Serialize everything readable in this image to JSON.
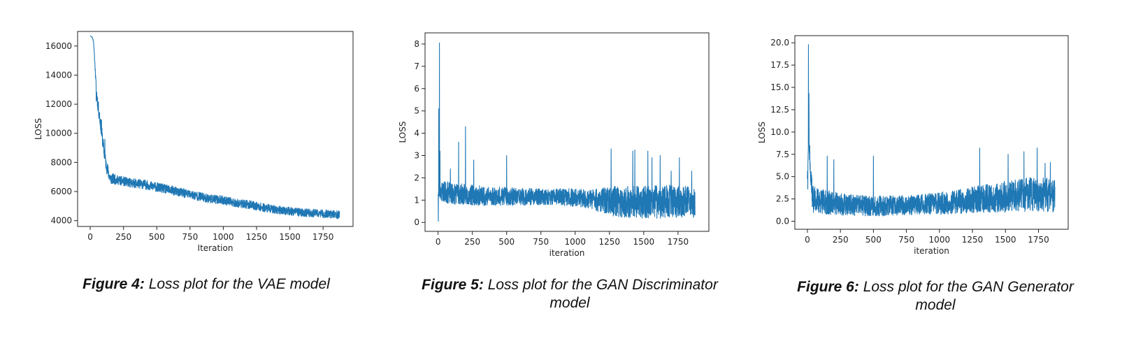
{
  "colors": {
    "series": "#1f77b4",
    "axis": "#222222",
    "background": "#ffffff"
  },
  "chart_data": [
    {
      "type": "line",
      "xlabel": "Iteration",
      "ylabel": "LOSS",
      "xlim": [
        -95,
        1975
      ],
      "ylim": [
        3600,
        17000
      ],
      "xticks": [
        0,
        250,
        500,
        750,
        1000,
        1250,
        1500,
        1750
      ],
      "yticks": [
        4000,
        6000,
        8000,
        10000,
        12000,
        14000,
        16000
      ],
      "ytick_labels": [
        "4000",
        "6000",
        "8000",
        "10000",
        "12000",
        "14000",
        "16000"
      ],
      "n_iterations": 1875,
      "trend": [
        [
          0,
          16700
        ],
        [
          15,
          16600
        ],
        [
          25,
          16300
        ],
        [
          35,
          14800
        ],
        [
          45,
          13000
        ],
        [
          60,
          11800
        ],
        [
          80,
          10500
        ],
        [
          100,
          9000
        ],
        [
          120,
          7800
        ],
        [
          150,
          6900
        ],
        [
          200,
          6800
        ],
        [
          300,
          6600
        ],
        [
          400,
          6500
        ],
        [
          500,
          6300
        ],
        [
          600,
          6100
        ],
        [
          700,
          5900
        ],
        [
          800,
          5700
        ],
        [
          900,
          5500
        ],
        [
          1000,
          5400
        ],
        [
          1100,
          5200
        ],
        [
          1200,
          5100
        ],
        [
          1300,
          4900
        ],
        [
          1400,
          4750
        ],
        [
          1500,
          4650
        ],
        [
          1600,
          4550
        ],
        [
          1700,
          4500
        ],
        [
          1800,
          4450
        ],
        [
          1870,
          4400
        ]
      ],
      "noise": [
        [
          0,
          0
        ],
        [
          30,
          60
        ],
        [
          50,
          500
        ],
        [
          120,
          450
        ],
        [
          200,
          320
        ],
        [
          500,
          320
        ],
        [
          1000,
          300
        ],
        [
          1500,
          280
        ],
        [
          1870,
          280
        ]
      ],
      "spikes": [
        [
          45,
          12200
        ],
        [
          70,
          11400
        ],
        [
          85,
          10900
        ],
        [
          110,
          9600
        ]
      ],
      "caption": {
        "label": "Figure 4:",
        "text": "Loss plot for the VAE model"
      }
    },
    {
      "type": "line",
      "xlabel": "iteration",
      "ylabel": "LOSS",
      "xlim": [
        -95,
        1975
      ],
      "ylim": [
        -0.4,
        8.5
      ],
      "xticks": [
        0,
        250,
        500,
        750,
        1000,
        1250,
        1500,
        1750
      ],
      "yticks": [
        0,
        1,
        2,
        3,
        4,
        5,
        6,
        7,
        8
      ],
      "ytick_labels": [
        "0",
        "1",
        "2",
        "3",
        "4",
        "5",
        "6",
        "7",
        "8"
      ],
      "n_iterations": 1875,
      "trend": [
        [
          0,
          1.3
        ],
        [
          20,
          1.4
        ],
        [
          100,
          1.3
        ],
        [
          300,
          1.2
        ],
        [
          600,
          1.15
        ],
        [
          900,
          1.15
        ],
        [
          1100,
          1.05
        ],
        [
          1300,
          0.95
        ],
        [
          1500,
          0.9
        ],
        [
          1700,
          0.95
        ],
        [
          1870,
          0.9
        ]
      ],
      "noise": [
        [
          0,
          0.2
        ],
        [
          30,
          0.5
        ],
        [
          300,
          0.45
        ],
        [
          800,
          0.35
        ],
        [
          1100,
          0.45
        ],
        [
          1300,
          0.7
        ],
        [
          1600,
          0.75
        ],
        [
          1870,
          0.7
        ]
      ],
      "spikes": [
        [
          2,
          0.05
        ],
        [
          5,
          5.1
        ],
        [
          10,
          8.05
        ],
        [
          14,
          3.2
        ],
        [
          20,
          1.5
        ],
        [
          90,
          2.4
        ],
        [
          150,
          3.6
        ],
        [
          200,
          4.3
        ],
        [
          260,
          2.8
        ],
        [
          500,
          3.0
        ],
        [
          1262,
          3.3
        ],
        [
          1420,
          3.2
        ],
        [
          1435,
          3.25
        ],
        [
          1530,
          3.2
        ],
        [
          1560,
          2.9
        ],
        [
          1620,
          3.0
        ],
        [
          1700,
          2.3
        ],
        [
          1760,
          2.9
        ],
        [
          1850,
          2.3
        ]
      ],
      "caption": {
        "label": "Figure 5:",
        "text": "Loss plot for the GAN Discriminator model"
      }
    },
    {
      "type": "line",
      "xlabel": "iteration",
      "ylabel": "LOSS",
      "xlim": [
        -95,
        1975
      ],
      "ylim": [
        -0.9,
        20.8
      ],
      "xticks": [
        0,
        250,
        500,
        750,
        1000,
        1250,
        1500,
        1750
      ],
      "yticks": [
        0,
        2.5,
        5,
        7.5,
        10,
        12.5,
        15,
        17.5,
        20
      ],
      "ytick_labels": [
        "0.0",
        "2.5",
        "5.0",
        "7.5",
        "10.0",
        "12.5",
        "15.0",
        "17.5",
        "20.0"
      ],
      "n_iterations": 1875,
      "trend": [
        [
          0,
          5
        ],
        [
          10,
          10
        ],
        [
          20,
          6
        ],
        [
          40,
          2.5
        ],
        [
          100,
          2.2
        ],
        [
          300,
          1.8
        ],
        [
          600,
          1.7
        ],
        [
          900,
          1.9
        ],
        [
          1100,
          2.1
        ],
        [
          1300,
          2.5
        ],
        [
          1500,
          2.8
        ],
        [
          1700,
          3.0
        ],
        [
          1870,
          3.0
        ]
      ],
      "noise": [
        [
          0,
          0.5
        ],
        [
          40,
          1.5
        ],
        [
          300,
          1.2
        ],
        [
          800,
          1.1
        ],
        [
          1200,
          1.4
        ],
        [
          1500,
          1.8
        ],
        [
          1870,
          2.0
        ]
      ],
      "spikes": [
        [
          3,
          3.6
        ],
        [
          8,
          19.8
        ],
        [
          12,
          14.3
        ],
        [
          18,
          8.5
        ],
        [
          25,
          5.5
        ],
        [
          150,
          7.3
        ],
        [
          200,
          6.9
        ],
        [
          500,
          7.3
        ],
        [
          1305,
          8.2
        ],
        [
          1520,
          7.5
        ],
        [
          1640,
          7.8
        ],
        [
          1740,
          8.2
        ],
        [
          1800,
          6.5
        ],
        [
          1840,
          6.6
        ]
      ],
      "caption": {
        "label": "Figure 6:",
        "text": "Loss plot for the GAN Generator model"
      }
    }
  ]
}
